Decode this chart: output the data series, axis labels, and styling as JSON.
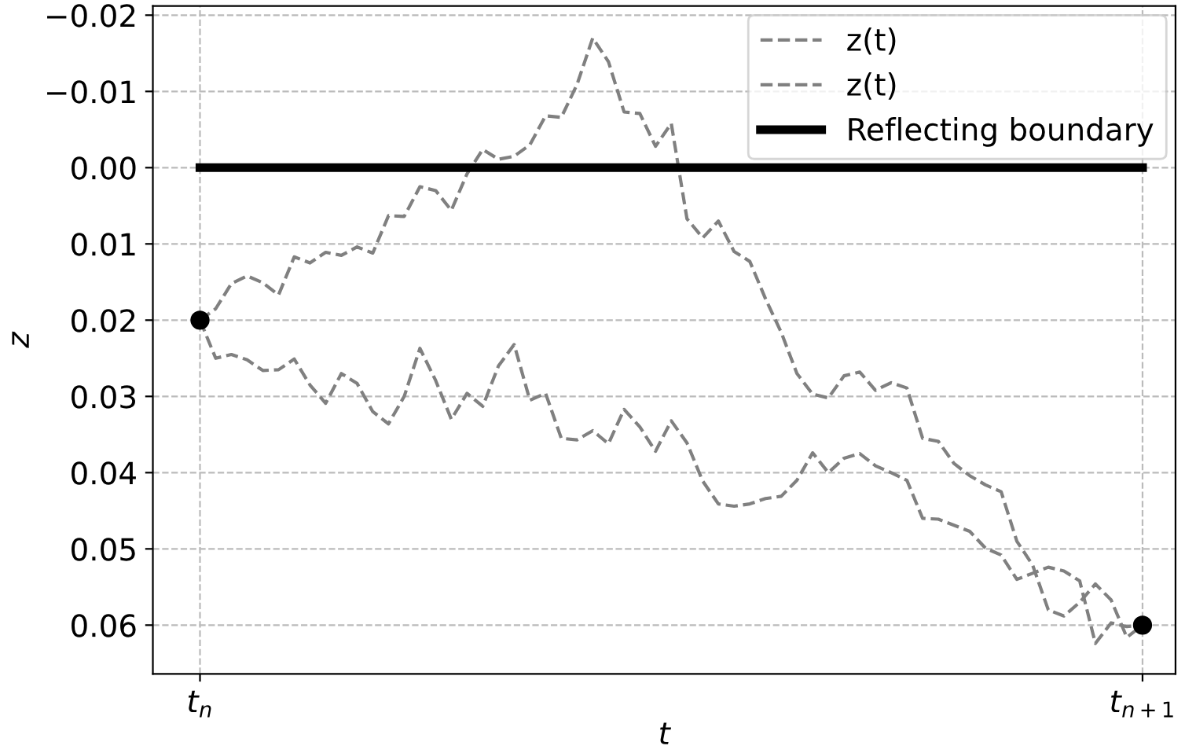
{
  "chart_data": {
    "type": "line",
    "xlabel": "t",
    "ylabel": "z",
    "ylim": [
      0.0664,
      -0.0212
    ],
    "categories": [
      "t$_{n}$",
      null,
      null,
      null,
      null,
      null,
      null,
      null,
      null,
      null,
      null,
      null,
      null,
      null,
      null,
      null,
      null,
      null,
      null,
      null,
      null,
      null,
      null,
      null,
      null,
      null,
      null,
      null,
      null,
      null,
      null,
      null,
      null,
      null,
      null,
      null,
      null,
      null,
      null,
      null,
      null,
      null,
      null,
      null,
      null,
      null,
      null,
      null,
      null,
      null,
      null,
      null,
      null,
      null,
      null,
      null,
      null,
      null,
      null,
      null,
      "t$_{n+1}$"
    ],
    "yticks": [
      {
        "value": -0.02,
        "label": "−0.02"
      },
      {
        "value": -0.01,
        "label": "−0.01"
      },
      {
        "value": 0,
        "label": "0.00"
      },
      {
        "value": 0.01,
        "label": "0.01"
      },
      {
        "value": 0.02,
        "label": "0.02"
      },
      {
        "value": 0.03,
        "label": "0.03"
      },
      {
        "value": 0.04,
        "label": "0.04"
      },
      {
        "value": 0.05,
        "label": "0.05"
      },
      {
        "value": 0.06,
        "label": "0.06"
      }
    ],
    "grid": true,
    "legend": "top right",
    "series": [
      {
        "name": "z(t)",
        "color": "#808080",
        "line_style": "dashed",
        "values": [
          0.02,
          0.0185,
          0.0152,
          0.0142,
          0.0151,
          0.0167,
          0.0117,
          0.0125,
          0.0111,
          0.0115,
          0.0104,
          0.0112,
          0.0063,
          0.0064,
          0.0025,
          0.003,
          0.0056,
          0.0008,
          -0.0024,
          -0.0011,
          -0.0015,
          -0.003,
          -0.0068,
          -0.0066,
          -0.0109,
          -0.017,
          -0.0139,
          -0.0073,
          -0.0071,
          -0.0028,
          -0.0058,
          0.0067,
          0.0092,
          0.007,
          0.011,
          0.0123,
          0.0172,
          0.0216,
          0.027,
          0.0297,
          0.0302,
          0.0273,
          0.0268,
          0.0292,
          0.0282,
          0.0289,
          0.0355,
          0.0359,
          0.0388,
          0.0404,
          0.0416,
          0.0425,
          0.049,
          0.0521,
          0.058,
          0.0588,
          0.057,
          0.0546,
          0.0567,
          0.0616,
          0.06
        ]
      },
      {
        "name": "z(t)",
        "color": "#808080",
        "line_style": "dashed",
        "values": [
          0.02,
          0.025,
          0.0245,
          0.0252,
          0.0266,
          0.0265,
          0.0251,
          0.0285,
          0.0309,
          0.027,
          0.0283,
          0.032,
          0.0336,
          0.03,
          0.0237,
          0.0279,
          0.033,
          0.0296,
          0.0313,
          0.026,
          0.0232,
          0.0305,
          0.0296,
          0.0355,
          0.0357,
          0.0345,
          0.0362,
          0.0317,
          0.034,
          0.0372,
          0.0332,
          0.0361,
          0.0411,
          0.0441,
          0.0444,
          0.0441,
          0.0434,
          0.0431,
          0.041,
          0.0374,
          0.04,
          0.0381,
          0.0375,
          0.0391,
          0.04,
          0.041,
          0.046,
          0.0461,
          0.0469,
          0.0477,
          0.0499,
          0.0508,
          0.054,
          0.0532,
          0.0524,
          0.0529,
          0.0542,
          0.0624,
          0.0597,
          0.0602,
          0.06
        ]
      },
      {
        "name": "Reflecting boundary",
        "color": "#000000",
        "line_style": "solid",
        "values": [
          0,
          0,
          0,
          0,
          0,
          0,
          0,
          0,
          0,
          0,
          0,
          0,
          0,
          0,
          0,
          0,
          0,
          0,
          0,
          0,
          0,
          0,
          0,
          0,
          0,
          0,
          0,
          0,
          0,
          0,
          0,
          0,
          0,
          0,
          0,
          0,
          0,
          0,
          0,
          0,
          0,
          0,
          0,
          0,
          0,
          0,
          0,
          0,
          0,
          0,
          0,
          0,
          0,
          0,
          0,
          0,
          0,
          0,
          0,
          0,
          0
        ]
      },
      {
        "type": "scatter",
        "color": "#000000",
        "marker": "circle",
        "values": [
          0.02,
          null,
          null,
          null,
          null,
          null,
          null,
          null,
          null,
          null,
          null,
          null,
          null,
          null,
          null,
          null,
          null,
          null,
          null,
          null,
          null,
          null,
          null,
          null,
          null,
          null,
          null,
          null,
          null,
          null,
          null,
          null,
          null,
          null,
          null,
          null,
          null,
          null,
          null,
          null,
          null,
          null,
          null,
          null,
          null,
          null,
          null,
          null,
          null,
          null,
          null,
          null,
          null,
          null,
          null,
          null,
          null,
          null,
          null,
          null,
          0.06
        ]
      }
    ]
  }
}
